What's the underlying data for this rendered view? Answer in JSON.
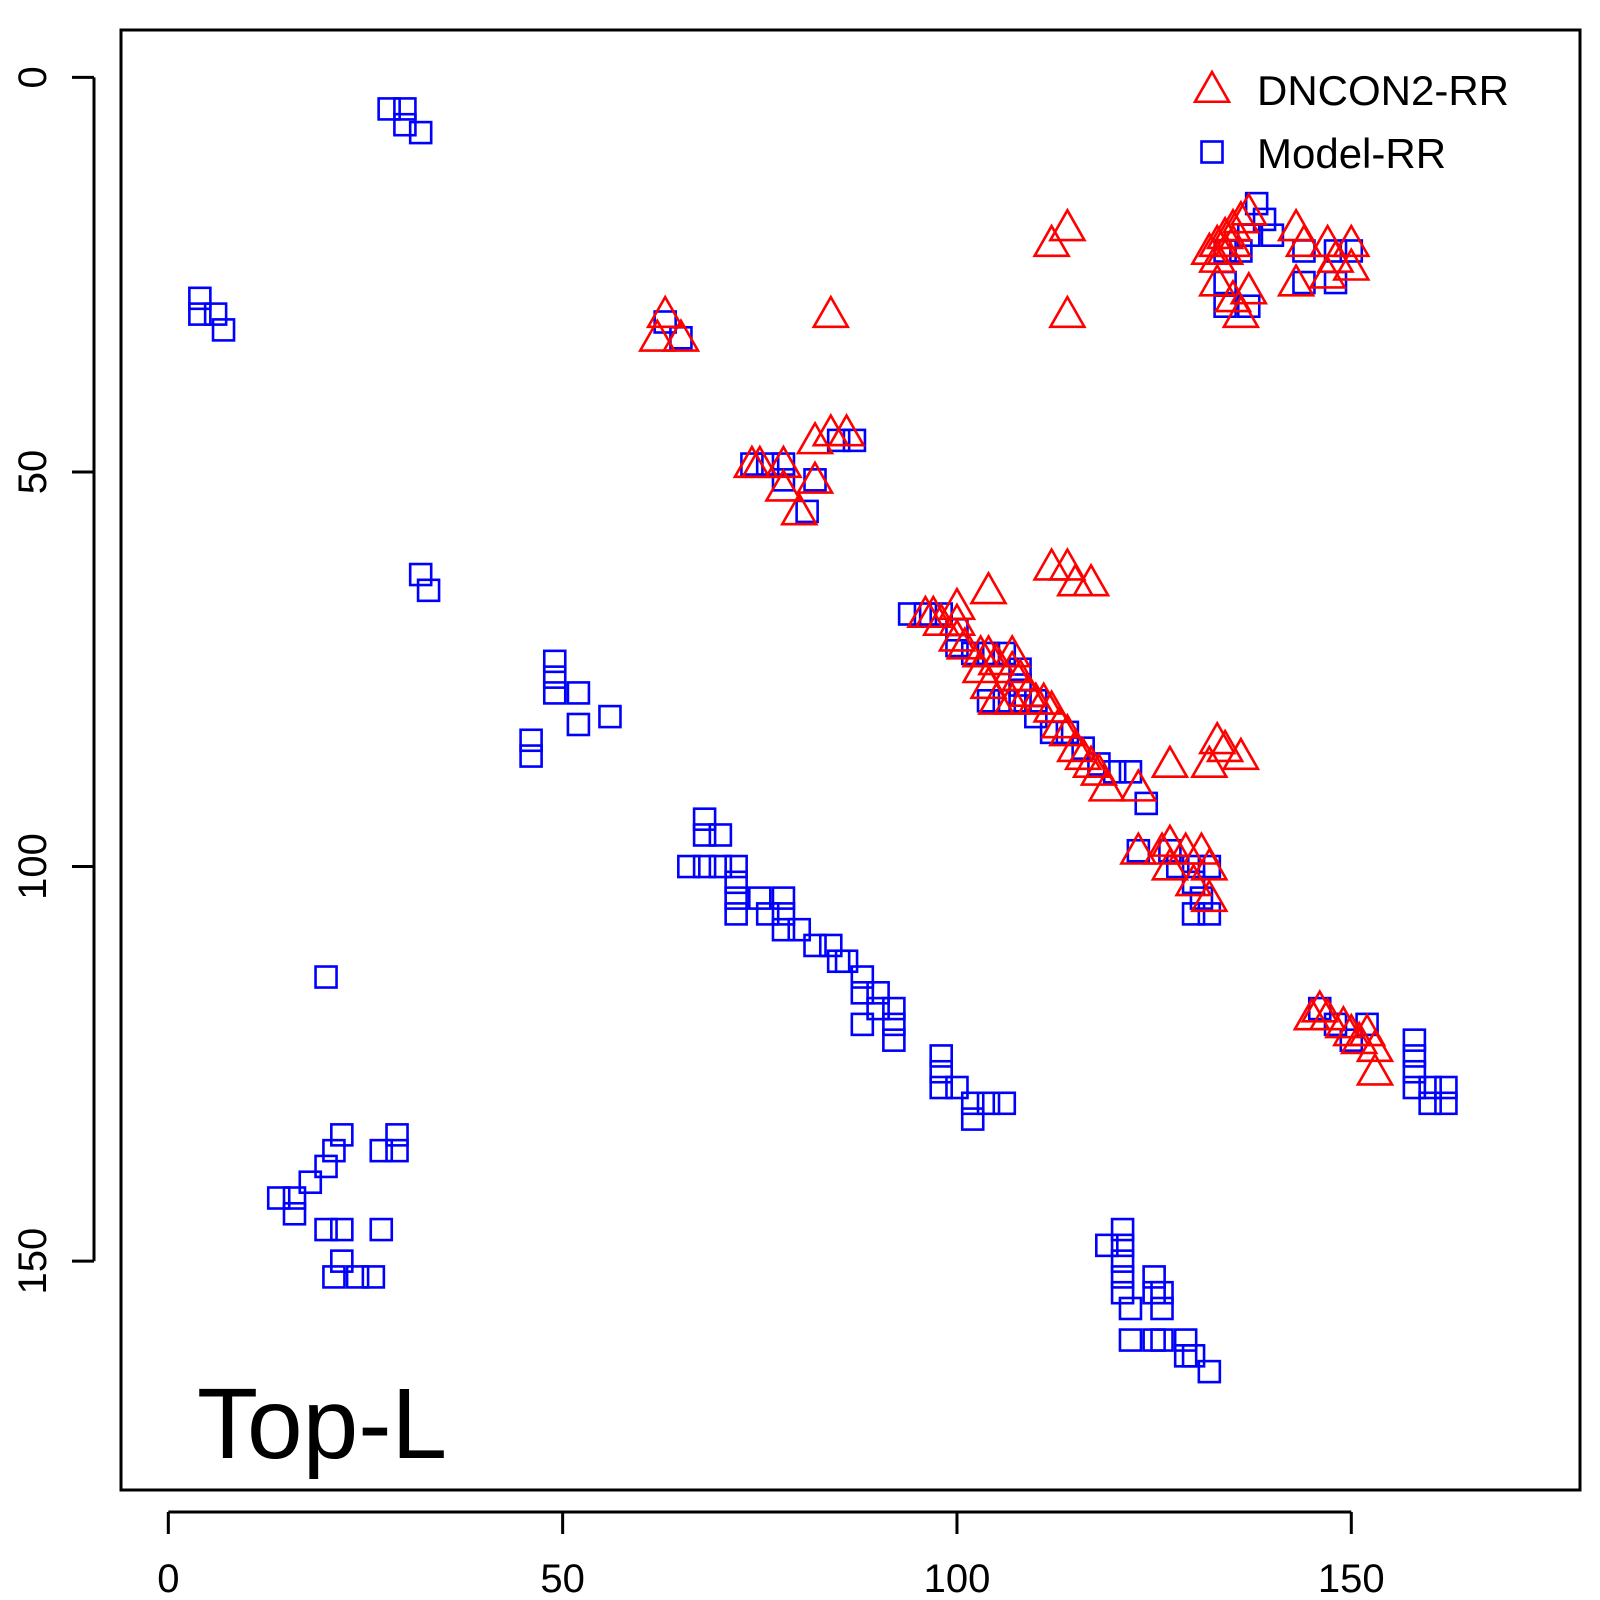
{
  "chart_data": {
    "type": "scatter",
    "title": "",
    "xlabel": "",
    "ylabel": "",
    "xlim": [
      -6,
      179
    ],
    "ylim": [
      -6,
      179
    ],
    "y_reversed": true,
    "x_ticks": [
      0,
      50,
      100,
      150
    ],
    "x_tick_labels": [
      "0",
      "50",
      "100",
      "150"
    ],
    "y_ticks": [
      0,
      50,
      100,
      150
    ],
    "y_tick_labels": [
      "0",
      "50",
      "100",
      "150"
    ],
    "grid": false,
    "legend_position": "top-right",
    "annotation": "Top-L",
    "series": [
      {
        "name": "DNCON2-RR",
        "marker": "triangle-open",
        "color": "#ff0000",
        "points": [
          [
            63,
            30
          ],
          [
            62,
            33
          ],
          [
            65,
            33
          ],
          [
            84,
            30
          ],
          [
            112,
            21
          ],
          [
            114,
            19
          ],
          [
            114,
            30
          ],
          [
            74,
            49
          ],
          [
            75,
            49
          ],
          [
            78,
            49
          ],
          [
            78,
            52
          ],
          [
            80,
            55
          ],
          [
            82,
            51
          ],
          [
            82,
            46
          ],
          [
            84,
            45
          ],
          [
            86,
            45
          ],
          [
            112,
            62
          ],
          [
            114,
            62
          ],
          [
            115,
            64
          ],
          [
            117,
            64
          ],
          [
            104,
            65
          ],
          [
            96,
            68
          ],
          [
            97,
            68
          ],
          [
            98,
            69
          ],
          [
            100,
            67
          ],
          [
            100,
            69
          ],
          [
            100,
            71
          ],
          [
            101,
            72
          ],
          [
            103,
            73
          ],
          [
            104,
            73
          ],
          [
            105,
            74
          ],
          [
            107,
            73
          ],
          [
            107,
            75
          ],
          [
            108,
            76
          ],
          [
            109,
            78
          ],
          [
            110,
            79
          ],
          [
            111,
            79
          ],
          [
            112,
            80
          ],
          [
            113,
            82
          ],
          [
            114,
            83
          ],
          [
            115,
            85
          ],
          [
            116,
            86
          ],
          [
            117,
            87
          ],
          [
            118,
            88
          ],
          [
            119,
            90
          ],
          [
            103,
            75
          ],
          [
            104,
            77
          ],
          [
            105,
            79
          ],
          [
            107,
            79
          ],
          [
            127,
            87
          ],
          [
            133,
            84
          ],
          [
            134,
            85
          ],
          [
            136,
            86
          ],
          [
            132,
            87
          ],
          [
            123,
            90
          ],
          [
            123,
            98
          ],
          [
            126,
            98
          ],
          [
            127,
            97
          ],
          [
            127,
            100
          ],
          [
            129,
            98
          ],
          [
            131,
            98
          ],
          [
            132,
            100
          ],
          [
            130,
            102
          ],
          [
            132,
            104
          ],
          [
            132,
            22
          ],
          [
            133,
            21
          ],
          [
            134,
            20
          ],
          [
            135,
            19
          ],
          [
            136,
            18
          ],
          [
            137,
            17
          ],
          [
            133,
            23
          ],
          [
            134,
            22
          ],
          [
            135,
            21
          ],
          [
            143,
            19
          ],
          [
            144,
            21
          ],
          [
            147,
            21
          ],
          [
            148,
            23
          ],
          [
            150,
            21
          ],
          [
            150,
            24
          ],
          [
            133,
            26
          ],
          [
            135,
            28
          ],
          [
            136,
            30
          ],
          [
            137,
            27
          ],
          [
            143,
            26
          ],
          [
            147,
            25
          ],
          [
            146,
            118
          ],
          [
            147,
            119
          ],
          [
            149,
            120
          ],
          [
            150,
            121
          ],
          [
            151,
            122
          ],
          [
            152,
            121
          ],
          [
            153,
            123
          ],
          [
            153,
            126
          ],
          [
            145,
            119
          ]
        ]
      },
      {
        "name": "Model-RR",
        "marker": "square-open",
        "color": "#0000ff",
        "points": [
          [
            28,
            4
          ],
          [
            30,
            4
          ],
          [
            30,
            6
          ],
          [
            32,
            7
          ],
          [
            4,
            28
          ],
          [
            4,
            30
          ],
          [
            6,
            30
          ],
          [
            7,
            32
          ],
          [
            63,
            31
          ],
          [
            65,
            33
          ],
          [
            74,
            49
          ],
          [
            76,
            49
          ],
          [
            78,
            49
          ],
          [
            78,
            51
          ],
          [
            81,
            55
          ],
          [
            82,
            51
          ],
          [
            85,
            46
          ],
          [
            87,
            46
          ],
          [
            94,
            68
          ],
          [
            96,
            68
          ],
          [
            98,
            68
          ],
          [
            100,
            70
          ],
          [
            100,
            72
          ],
          [
            102,
            73
          ],
          [
            104,
            73
          ],
          [
            106,
            73
          ],
          [
            108,
            75
          ],
          [
            108,
            77
          ],
          [
            104,
            79
          ],
          [
            106,
            79
          ],
          [
            108,
            79
          ],
          [
            110,
            79
          ],
          [
            110,
            81
          ],
          [
            112,
            83
          ],
          [
            114,
            83
          ],
          [
            116,
            85
          ],
          [
            118,
            87
          ],
          [
            120,
            88
          ],
          [
            122,
            88
          ],
          [
            124,
            92
          ],
          [
            32,
            63
          ],
          [
            33,
            65
          ],
          [
            49,
            74
          ],
          [
            49,
            76
          ],
          [
            49,
            78
          ],
          [
            52,
            78
          ],
          [
            52,
            82
          ],
          [
            56,
            81
          ],
          [
            46,
            84
          ],
          [
            46,
            86
          ],
          [
            68,
            94
          ],
          [
            68,
            96
          ],
          [
            70,
            96
          ],
          [
            66,
            100
          ],
          [
            68,
            100
          ],
          [
            70,
            100
          ],
          [
            72,
            100
          ],
          [
            72,
            102
          ],
          [
            72,
            104
          ],
          [
            75,
            104
          ],
          [
            78,
            104
          ],
          [
            72,
            106
          ],
          [
            76,
            106
          ],
          [
            78,
            106
          ],
          [
            78,
            108
          ],
          [
            80,
            108
          ],
          [
            82,
            110
          ],
          [
            84,
            110
          ],
          [
            85,
            112
          ],
          [
            86,
            112
          ],
          [
            88,
            114
          ],
          [
            88,
            116
          ],
          [
            90,
            116
          ],
          [
            90,
            118
          ],
          [
            92,
            118
          ],
          [
            92,
            120
          ],
          [
            92,
            122
          ],
          [
            88,
            120
          ],
          [
            20,
            114
          ],
          [
            123,
            98
          ],
          [
            127,
            98
          ],
          [
            128,
            100
          ],
          [
            130,
            100
          ],
          [
            132,
            100
          ],
          [
            130,
            102
          ],
          [
            131,
            104
          ],
          [
            130,
            106
          ],
          [
            132,
            106
          ],
          [
            98,
            124
          ],
          [
            98,
            126
          ],
          [
            98,
            128
          ],
          [
            100,
            128
          ],
          [
            102,
            130
          ],
          [
            102,
            132
          ],
          [
            104,
            130
          ],
          [
            106,
            130
          ],
          [
            138,
            16
          ],
          [
            139,
            18
          ],
          [
            137,
            20
          ],
          [
            140,
            20
          ],
          [
            134,
            22
          ],
          [
            136,
            22
          ],
          [
            144,
            22
          ],
          [
            148,
            22
          ],
          [
            150,
            22
          ],
          [
            144,
            26
          ],
          [
            148,
            26
          ],
          [
            134,
            26
          ],
          [
            134,
            29
          ],
          [
            137,
            29
          ],
          [
            146,
            118
          ],
          [
            148,
            120
          ],
          [
            152,
            120
          ],
          [
            150,
            122
          ],
          [
            158,
            122
          ],
          [
            158,
            124
          ],
          [
            158,
            126
          ],
          [
            160,
            130
          ],
          [
            158,
            128
          ],
          [
            160,
            128
          ],
          [
            162,
            128
          ],
          [
            162,
            130
          ],
          [
            22,
            134
          ],
          [
            21,
            136
          ],
          [
            20,
            138
          ],
          [
            18,
            140
          ],
          [
            16,
            142
          ],
          [
            14,
            142
          ],
          [
            16,
            144
          ],
          [
            29,
            134
          ],
          [
            29,
            136
          ],
          [
            27,
            136
          ],
          [
            20,
            146
          ],
          [
            22,
            146
          ],
          [
            27,
            146
          ],
          [
            22,
            150
          ],
          [
            24,
            152
          ],
          [
            26,
            152
          ],
          [
            21,
            152
          ],
          [
            121,
            146
          ],
          [
            119,
            148
          ],
          [
            121,
            148
          ],
          [
            121,
            150
          ],
          [
            121,
            152
          ],
          [
            125,
            152
          ],
          [
            126,
            154
          ],
          [
            121,
            154
          ],
          [
            125,
            154
          ],
          [
            126,
            156
          ],
          [
            122,
            156
          ],
          [
            122,
            160
          ],
          [
            125,
            160
          ],
          [
            126,
            160
          ],
          [
            129,
            160
          ],
          [
            129,
            162
          ],
          [
            130,
            162
          ],
          [
            132,
            164
          ]
        ]
      }
    ]
  }
}
